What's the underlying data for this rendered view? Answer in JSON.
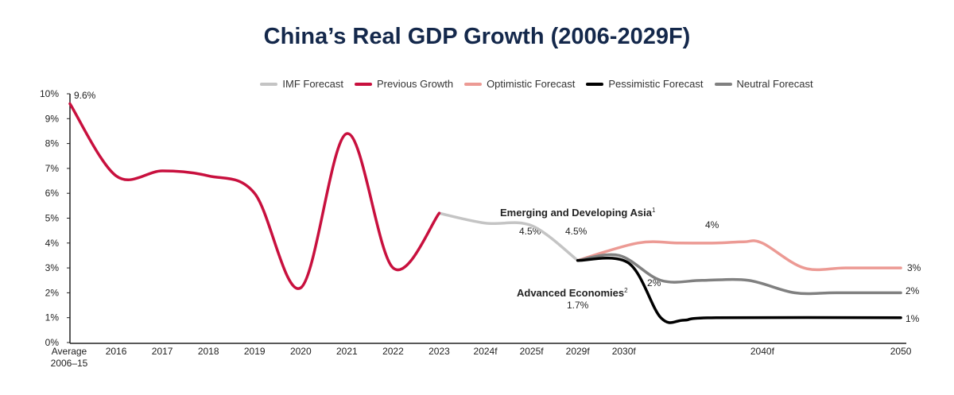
{
  "title": "China’s Real GDP Growth (2006-2029F)",
  "chart_data": {
    "type": "line",
    "title": "China’s Real GDP Growth (2006-2029F)",
    "categories": [
      "Average 2006–15",
      "2016",
      "2017",
      "2018",
      "2019",
      "2020",
      "2021",
      "2022",
      "2023",
      "2024f",
      "2025f",
      "2029f",
      "2030f",
      "2040f",
      "2050"
    ],
    "category_index": [
      0,
      1,
      2,
      3,
      4,
      5,
      6,
      7,
      8,
      9,
      10,
      11,
      12,
      15,
      18
    ],
    "yticks": [
      "0%",
      "1%",
      "2%",
      "3%",
      "4%",
      "5%",
      "6%",
      "7%",
      "8%",
      "9%",
      "10%"
    ],
    "ylim": [
      0,
      10
    ],
    "legend_position": "top",
    "series": [
      {
        "name": "IMF Forecast",
        "color": "#c4c4c4",
        "points": [
          [
            8,
            5.2
          ],
          [
            9,
            4.8
          ],
          [
            10,
            4.7
          ],
          [
            11,
            3.3
          ]
        ]
      },
      {
        "name": "Previous Growth",
        "color": "#c8103e",
        "points": [
          [
            0,
            9.6
          ],
          [
            1,
            6.7
          ],
          [
            2,
            6.9
          ],
          [
            3,
            6.7
          ],
          [
            4,
            6.0
          ],
          [
            5,
            2.2
          ],
          [
            6,
            8.4
          ],
          [
            7,
            3.0
          ],
          [
            8,
            5.2
          ]
        ]
      },
      {
        "name": "Optimistic Forecast",
        "color": "#ec9a94",
        "points": [
          [
            11,
            3.3
          ],
          [
            12.3,
            4.0
          ],
          [
            13.2,
            4.0
          ],
          [
            14,
            4.0
          ],
          [
            14.6,
            4.05
          ],
          [
            15,
            4.0
          ],
          [
            15.9,
            3.0
          ],
          [
            16.8,
            3.0
          ],
          [
            18,
            3.0
          ]
        ]
      },
      {
        "name": "Pessimistic Forecast",
        "color": "#000000",
        "points": [
          [
            11,
            3.3
          ],
          [
            12.1,
            3.2
          ],
          [
            12.8,
            1.0
          ],
          [
            13.3,
            0.9
          ],
          [
            14,
            1.0
          ],
          [
            18,
            1.0
          ]
        ]
      },
      {
        "name": "Neutral Forecast",
        "color": "#808080",
        "points": [
          [
            11,
            3.3
          ],
          [
            11.9,
            3.5
          ],
          [
            12.8,
            2.5
          ],
          [
            13.7,
            2.5
          ],
          [
            14.7,
            2.5
          ],
          [
            15.7,
            2.0
          ],
          [
            16.6,
            2.0
          ],
          [
            18,
            2.0
          ]
        ]
      }
    ],
    "annotations": {
      "start": "9.6%",
      "eda_label": "Emerging and Developing Asia",
      "eda_sup": "1",
      "imf1": "4.5%",
      "imf2": "4.5%",
      "ae_label": "Advanced Economies",
      "ae_sup": "2",
      "ae_val": "1.7%",
      "opt_mid": "4%",
      "neu_mid": "2%",
      "opt_end": "3%",
      "neu_end": "2%",
      "pes_end": "1%"
    }
  }
}
